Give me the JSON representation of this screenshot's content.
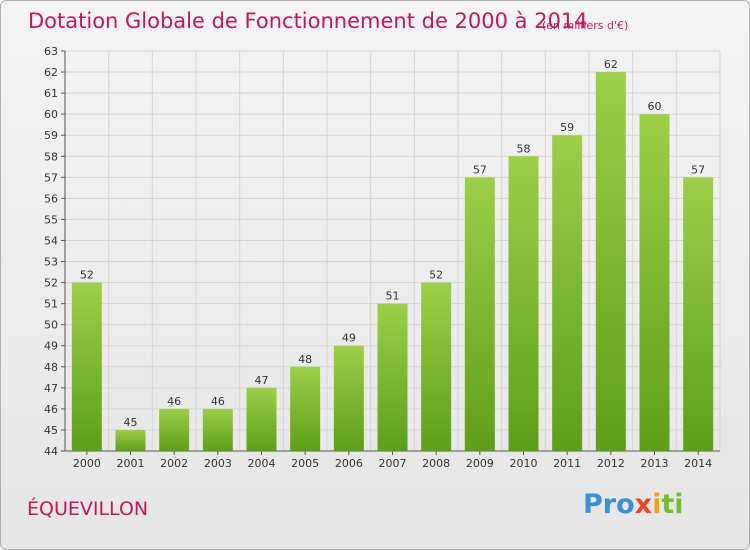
{
  "title": "Dotation Globale de Fonctionnement de 2000 à 2014",
  "subtitle": "(en milliers d'€)",
  "commune": "ÉQUEVILLON",
  "logo_parts": [
    "Pro",
    "x",
    "i",
    "ti"
  ],
  "colors": {
    "title": "#c2185b",
    "bar_top": "#9ccf4a",
    "bar_bottom": "#5f9e1a",
    "grid": "#d5d5d5",
    "axis": "#555555"
  },
  "chart_data": {
    "type": "bar",
    "categories": [
      "2000",
      "2001",
      "2002",
      "2003",
      "2004",
      "2005",
      "2006",
      "2007",
      "2008",
      "2009",
      "2010",
      "2011",
      "2012",
      "2013",
      "2014"
    ],
    "values": [
      52,
      45,
      46,
      46,
      47,
      48,
      49,
      51,
      52,
      57,
      58,
      59,
      62,
      60,
      57
    ],
    "ylim": [
      44,
      63
    ],
    "yticks": [
      44,
      45,
      46,
      47,
      48,
      49,
      50,
      51,
      52,
      53,
      54,
      55,
      56,
      57,
      58,
      59,
      60,
      61,
      62,
      63
    ],
    "grid": true
  }
}
